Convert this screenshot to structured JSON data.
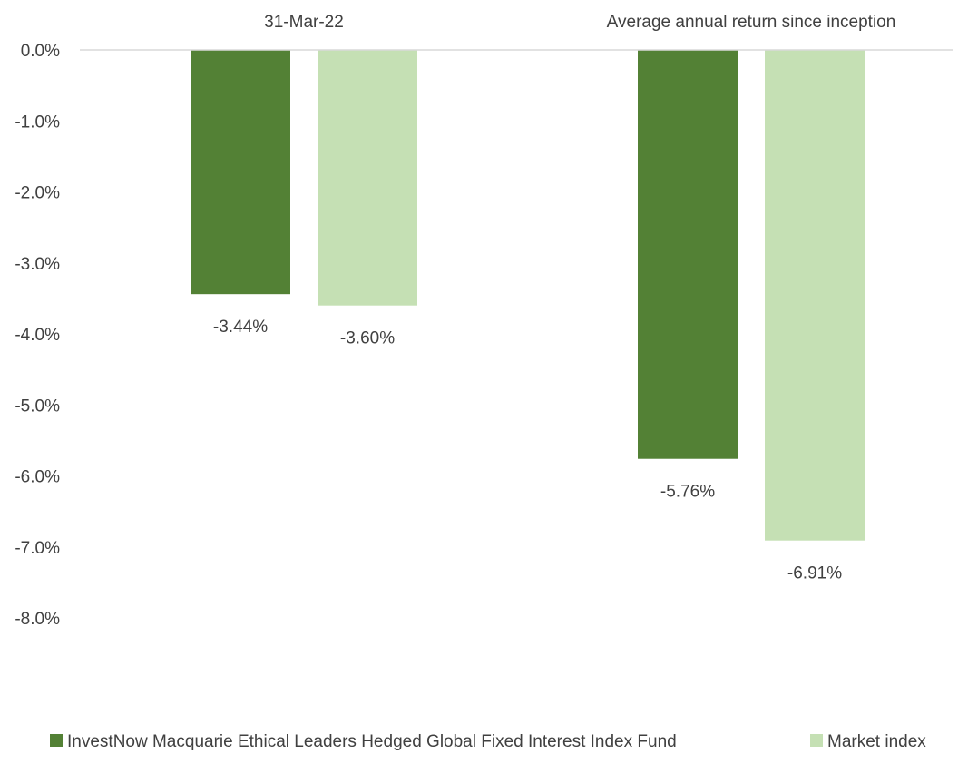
{
  "chart_data": {
    "type": "bar",
    "categories": [
      "31-Mar-22",
      "Average annual return since inception"
    ],
    "series": [
      {
        "name": "InvestNow Macquarie Ethical Leaders Hedged Global Fixed Interest Index Fund",
        "values": [
          -3.44,
          -5.76
        ],
        "labels": [
          "-3.44%",
          "-5.76%"
        ],
        "color": "#538135"
      },
      {
        "name": "Market index",
        "values": [
          -3.6,
          -6.91
        ],
        "labels": [
          "-3.60%",
          "-6.91%"
        ],
        "color": "#C5E0B4"
      }
    ],
    "ylim": [
      -8.0,
      0.0
    ],
    "yticks": [
      0.0,
      -1.0,
      -2.0,
      -3.0,
      -4.0,
      -5.0,
      -6.0,
      -7.0,
      -8.0
    ],
    "ytick_labels": [
      "0.0%",
      "-1.0%",
      "-2.0%",
      "-3.0%",
      "-4.0%",
      "-5.0%",
      "-6.0%",
      "-7.0%",
      "-8.0%"
    ],
    "category_labels_position": "top",
    "grid": false,
    "legend_position": "bottom"
  }
}
